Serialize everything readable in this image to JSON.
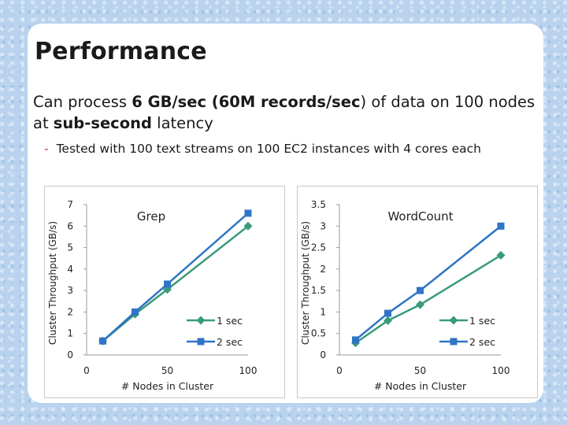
{
  "slide": {
    "title": "Performance",
    "headline_parts": [
      {
        "text": "Can process ",
        "bold": false
      },
      {
        "text": "6 GB/sec (60M records/sec",
        "bold": true
      },
      {
        "text": ") of data on 100 nodes at ",
        "bold": false
      },
      {
        "text": "sub-second",
        "bold": true
      },
      {
        "text": " latency",
        "bold": false
      }
    ],
    "sub_bullet_marker": "-",
    "sub_bullet": "Tested with 100 text streams on 100 EC2 instances with 4 cores each"
  },
  "colors": {
    "series_1sec": "#3a9a7a",
    "series_2sec": "#2f74c6",
    "axis": "#999999"
  },
  "chart_data": [
    {
      "type": "line",
      "title": "Grep",
      "xlabel": "# Nodes in Cluster",
      "ylabel": "Cluster Throughput (GB/s)",
      "xlim": [
        0,
        100
      ],
      "ylim": [
        0,
        7
      ],
      "xticks": [
        0,
        50,
        100
      ],
      "yticks": [
        0,
        1,
        2,
        3,
        4,
        5,
        6,
        7
      ],
      "ytick_labels": [
        "0",
        "1",
        "2",
        "3",
        "4",
        "5",
        "6",
        "7"
      ],
      "legend_position": "right",
      "series": [
        {
          "name": "1 sec",
          "marker": "diamond",
          "x": [
            10,
            30,
            50,
            100
          ],
          "y": [
            0.65,
            1.9,
            3.05,
            6.0
          ]
        },
        {
          "name": "2 sec",
          "marker": "square",
          "x": [
            10,
            30,
            50,
            100
          ],
          "y": [
            0.65,
            2.0,
            3.3,
            6.6
          ]
        }
      ]
    },
    {
      "type": "line",
      "title": "WordCount",
      "xlabel": "# Nodes in Cluster",
      "ylabel": "Cluster Throughput (GB/s)",
      "xlim": [
        0,
        100
      ],
      "ylim": [
        0,
        3.5
      ],
      "xticks": [
        0,
        50,
        100
      ],
      "yticks": [
        0,
        0.5,
        1,
        1.5,
        2,
        2.5,
        3,
        3.5
      ],
      "ytick_labels": [
        "0",
        "0.5",
        "1",
        "1.5",
        "2",
        "2.5",
        "3",
        "3.5"
      ],
      "legend_position": "right",
      "series": [
        {
          "name": "1 sec",
          "marker": "diamond",
          "x": [
            10,
            30,
            50,
            100
          ],
          "y": [
            0.28,
            0.8,
            1.17,
            2.32
          ]
        },
        {
          "name": "2 sec",
          "marker": "square",
          "x": [
            10,
            30,
            50,
            100
          ],
          "y": [
            0.35,
            0.97,
            1.5,
            3.0
          ]
        }
      ]
    }
  ]
}
